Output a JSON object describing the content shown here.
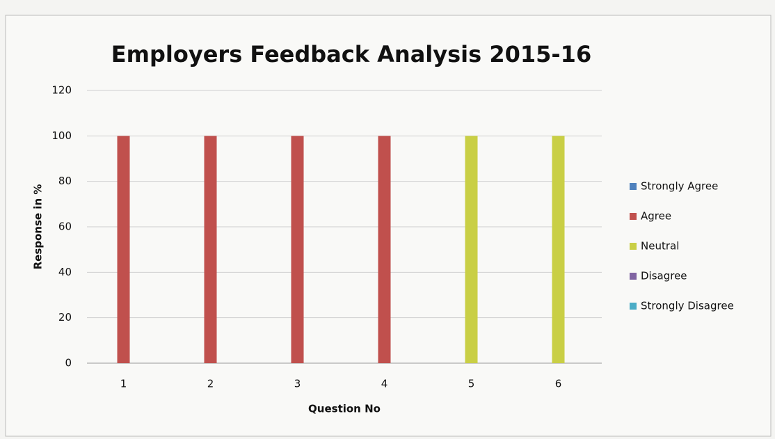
{
  "chart_data": {
    "type": "bar",
    "stacked": true,
    "title": "Employers Feedback Analysis 2015-16",
    "x_label": "Question No",
    "y_label": "Response in %",
    "categories": [
      "1",
      "2",
      "3",
      "4",
      "5",
      "6"
    ],
    "series": [
      {
        "name": "Strongly Agree",
        "color": "#4f81bd",
        "values": [
          0,
          0,
          0,
          0,
          0,
          0
        ]
      },
      {
        "name": "Agree",
        "color": "#c0504d",
        "values": [
          100,
          100,
          100,
          100,
          0,
          0
        ]
      },
      {
        "name": "Neutral",
        "color": "#c9cf45",
        "values": [
          0,
          0,
          0,
          0,
          100,
          100
        ]
      },
      {
        "name": "Disagree",
        "color": "#8064a2",
        "values": [
          0,
          0,
          0,
          0,
          0,
          0
        ]
      },
      {
        "name": "Strongly Disagree",
        "color": "#4bacc6",
        "values": [
          0,
          0,
          0,
          0,
          0,
          0
        ]
      }
    ],
    "ylim": [
      0,
      120
    ],
    "yticks": [
      0,
      20,
      40,
      60,
      80,
      100,
      120
    ],
    "grid": true,
    "legend": "right"
  }
}
